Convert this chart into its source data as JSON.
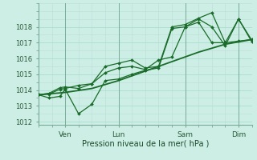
{
  "background_color": "#cceee4",
  "grid_color_major": "#aaddd0",
  "grid_color_minor": "#bbddd6",
  "line_color": "#1a6b2a",
  "xlabel": "Pression niveau de la mer( hPa )",
  "ylim": [
    1011.8,
    1019.5
  ],
  "yticks": [
    1012,
    1013,
    1014,
    1015,
    1016,
    1017,
    1018
  ],
  "xlim": [
    0,
    8.0
  ],
  "day_labels": [
    "Ven",
    "Lun",
    "Sam",
    "Dim"
  ],
  "day_positions": [
    1.0,
    3.0,
    5.5,
    7.5
  ],
  "vline_positions": [
    1.0,
    3.0,
    5.5,
    7.5
  ],
  "series": [
    {
      "x": [
        0,
        1.0,
        2.0,
        3.0,
        4.0,
        5.0,
        6.0,
        7.0,
        8.0
      ],
      "y": [
        1013.7,
        1013.85,
        1014.1,
        1014.6,
        1015.2,
        1015.8,
        1016.4,
        1016.9,
        1017.2
      ],
      "linewidth": 1.3,
      "marker": null,
      "markersize": 0,
      "linestyle": "-"
    },
    {
      "x": [
        0,
        0.4,
        0.8,
        1.0,
        1.5,
        2.0,
        2.5,
        3.0,
        3.5,
        4.0,
        4.5,
        5.0,
        5.5,
        6.0,
        6.5,
        7.0,
        7.5,
        8.0
      ],
      "y": [
        1013.7,
        1013.75,
        1014.05,
        1014.1,
        1014.3,
        1014.4,
        1015.1,
        1015.4,
        1015.5,
        1015.3,
        1015.9,
        1016.1,
        1018.0,
        1018.3,
        1017.0,
        1017.0,
        1017.1,
        1017.2
      ],
      "linewidth": 0.9,
      "marker": "D",
      "markersize": 2.0,
      "linestyle": "-"
    },
    {
      "x": [
        0,
        0.4,
        0.8,
        1.0,
        1.5,
        2.0,
        2.5,
        3.0,
        3.5,
        4.0,
        4.5,
        5.0,
        5.5,
        6.0,
        6.5,
        7.0,
        7.5,
        8.0
      ],
      "y": [
        1013.7,
        1013.5,
        1013.6,
        1014.05,
        1012.5,
        1013.1,
        1014.6,
        1014.7,
        1015.0,
        1015.25,
        1015.4,
        1017.9,
        1018.0,
        1018.5,
        1018.0,
        1016.8,
        1018.5,
        1017.05
      ],
      "linewidth": 0.9,
      "marker": "D",
      "markersize": 2.0,
      "linestyle": "-"
    },
    {
      "x": [
        0,
        0.4,
        0.8,
        1.0,
        1.5,
        2.0,
        2.5,
        3.0,
        3.5,
        4.0,
        4.5,
        5.0,
        5.5,
        6.0,
        6.5,
        7.0,
        7.5,
        8.0
      ],
      "y": [
        1013.7,
        1013.8,
        1014.15,
        1014.2,
        1014.1,
        1014.4,
        1015.5,
        1015.7,
        1015.9,
        1015.4,
        1015.5,
        1018.0,
        1018.15,
        1018.55,
        1018.9,
        1017.0,
        1018.5,
        1017.15
      ],
      "linewidth": 0.9,
      "marker": "D",
      "markersize": 2.0,
      "linestyle": "-"
    }
  ]
}
